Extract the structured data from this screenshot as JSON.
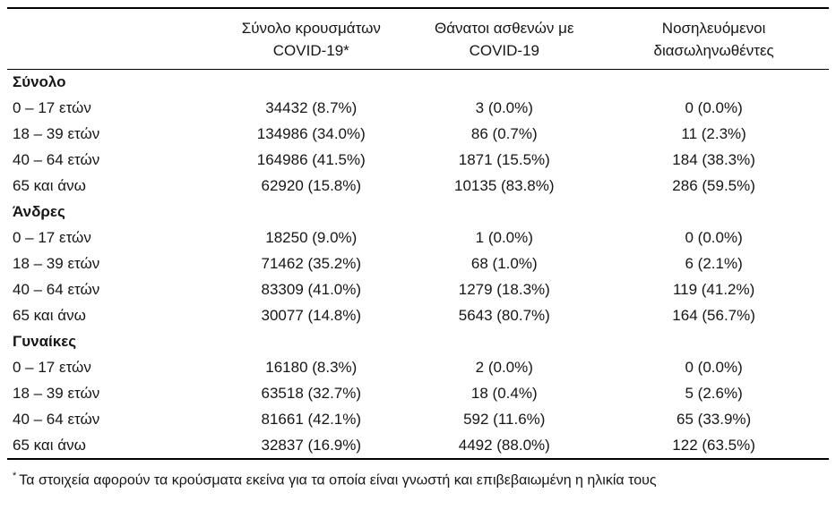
{
  "table": {
    "headers": [
      {
        "line1": "Σύνολο κρουσμάτων",
        "line2": "COVID-19*"
      },
      {
        "line1": "Θάνατοι ασθενών με",
        "line2": "COVID-19"
      },
      {
        "line1": "Νοσηλευόμενοι",
        "line2": "διασωληνωθέντες"
      }
    ],
    "sections": [
      {
        "label": "Σύνολο",
        "rows": [
          {
            "label": "0 – 17 ετών",
            "values": [
              "34432 (8.7%)",
              "3 (0.0%)",
              "0 (0.0%)"
            ]
          },
          {
            "label": "18 – 39 ετών",
            "values": [
              "134986 (34.0%)",
              "86 (0.7%)",
              "11 (2.3%)"
            ]
          },
          {
            "label": "40 – 64 ετών",
            "values": [
              "164986 (41.5%)",
              "1871 (15.5%)",
              "184 (38.3%)"
            ]
          },
          {
            "label": "65 και άνω",
            "values": [
              "62920 (15.8%)",
              "10135 (83.8%)",
              "286 (59.5%)"
            ]
          }
        ]
      },
      {
        "label": "Άνδρες",
        "rows": [
          {
            "label": "0 – 17 ετών",
            "values": [
              "18250 (9.0%)",
              "1 (0.0%)",
              "0 (0.0%)"
            ]
          },
          {
            "label": "18 – 39 ετών",
            "values": [
              "71462 (35.2%)",
              "68 (1.0%)",
              "6 (2.1%)"
            ]
          },
          {
            "label": "40 – 64 ετών",
            "values": [
              "83309 (41.0%)",
              "1279 (18.3%)",
              "119 (41.2%)"
            ]
          },
          {
            "label": "65 και άνω",
            "values": [
              "30077 (14.8%)",
              "5643 (80.7%)",
              "164 (56.7%)"
            ]
          }
        ]
      },
      {
        "label": "Γυναίκες",
        "rows": [
          {
            "label": "0 – 17 ετών",
            "values": [
              "16180 (8.3%)",
              "2 (0.0%)",
              "0 (0.0%)"
            ]
          },
          {
            "label": "18 – 39 ετών",
            "values": [
              "63518 (32.7%)",
              "18 (0.4%)",
              "5 (2.6%)"
            ]
          },
          {
            "label": "40 – 64 ετών",
            "values": [
              "81661 (42.1%)",
              "592 (11.6%)",
              "65 (33.9%)"
            ]
          },
          {
            "label": "65 και άνω",
            "values": [
              "32837 (16.9%)",
              "4492 (88.0%)",
              "122 (63.5%)"
            ]
          }
        ]
      }
    ],
    "footnote_marker": "*",
    "footnote": "Τα στοιχεία αφορούν τα κρούσματα εκείνα για τα οποία είναι γνωστή και επιβεβαιωμένη η ηλικία τους"
  }
}
